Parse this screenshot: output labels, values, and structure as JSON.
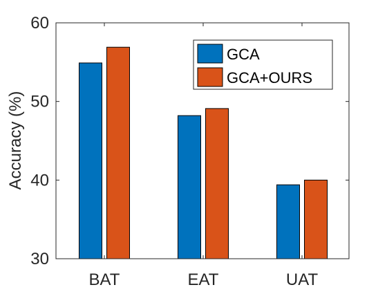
{
  "chart_data": {
    "type": "bar",
    "title": "",
    "xlabel": "",
    "ylabel": "Accuracy (%)",
    "categories": [
      "BAT",
      "EAT",
      "UAT"
    ],
    "series": [
      {
        "name": "GCA",
        "color": "#0072BD",
        "values": [
          54.9,
          48.2,
          39.4
        ]
      },
      {
        "name": "GCA+OURS",
        "color": "#D95319",
        "values": [
          56.9,
          49.1,
          40.0
        ]
      }
    ],
    "ylim": [
      30,
      60
    ],
    "yticks": [
      "30",
      "40",
      "50",
      "60"
    ],
    "grid": false,
    "legend_position": "top-right"
  }
}
